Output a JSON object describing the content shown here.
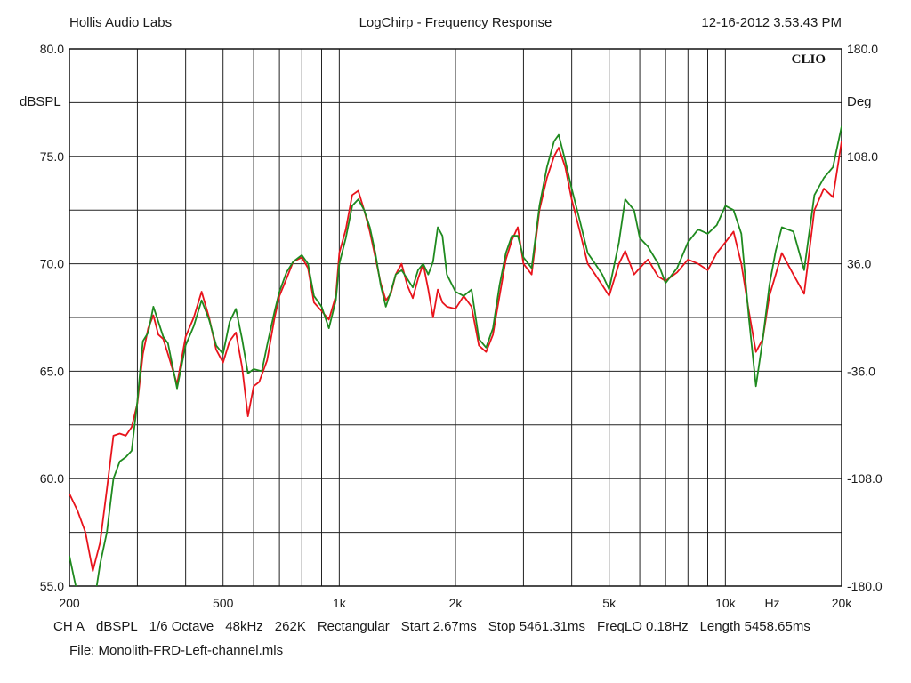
{
  "header": {
    "left": "Hollis Audio Labs",
    "center": "LogChirp - Frequency Response",
    "right": "12-16-2012 3.53.43 PM"
  },
  "brand": "CLIO",
  "footer": {
    "info": [
      "CH A",
      "dBSPL",
      "1/6 Octave",
      "48kHz",
      "262K",
      "Rectangular",
      "Start 2.67ms",
      "Stop 5461.31ms",
      "FreqLO 0.18Hz",
      "Length 5458.65ms"
    ],
    "file": "File: Monolith-FRD-Left-channel.mls"
  },
  "chart_data": {
    "type": "line",
    "xscale": "log",
    "xlim": [
      200,
      20000
    ],
    "ylim": [
      55,
      80
    ],
    "y2lim": [
      -180,
      180
    ],
    "ylabel": "dBSPL",
    "y2label": "Deg",
    "xunit": "Hz",
    "grid": true,
    "x_ticks": [
      {
        "v": 200,
        "label": "200"
      },
      {
        "v": 500,
        "label": "500"
      },
      {
        "v": 1000,
        "label": "1k"
      },
      {
        "v": 2000,
        "label": "2k"
      },
      {
        "v": 5000,
        "label": "5k"
      },
      {
        "v": 10000,
        "label": "10k"
      },
      {
        "v": 20000,
        "label": "20k"
      }
    ],
    "y_ticks": [
      {
        "v": 55,
        "label": "55.0"
      },
      {
        "v": 60,
        "label": "60.0"
      },
      {
        "v": 65,
        "label": "65.0"
      },
      {
        "v": 70,
        "label": "70.0"
      },
      {
        "v": 75,
        "label": "75.0"
      },
      {
        "v": 80,
        "label": "80.0"
      }
    ],
    "y2_ticks": [
      {
        "v": -180,
        "label": "-180.0"
      },
      {
        "v": -108,
        "label": "-108.0"
      },
      {
        "v": -36,
        "label": "-36.0"
      },
      {
        "v": 36,
        "label": "36.0"
      },
      {
        "v": 108,
        "label": "108.0"
      },
      {
        "v": 180,
        "label": "180.0"
      }
    ],
    "series": [
      {
        "color": "#e8141c",
        "points": [
          [
            200,
            59.3
          ],
          [
            210,
            58.5
          ],
          [
            220,
            57.5
          ],
          [
            230,
            55.7
          ],
          [
            240,
            57.0
          ],
          [
            250,
            59.5
          ],
          [
            260,
            62.0
          ],
          [
            270,
            62.1
          ],
          [
            280,
            62.0
          ],
          [
            290,
            62.4
          ],
          [
            300,
            63.5
          ],
          [
            310,
            65.8
          ],
          [
            320,
            67.0
          ],
          [
            330,
            67.6
          ],
          [
            340,
            66.7
          ],
          [
            350,
            66.5
          ],
          [
            360,
            65.8
          ],
          [
            380,
            64.4
          ],
          [
            400,
            66.6
          ],
          [
            420,
            67.5
          ],
          [
            440,
            68.7
          ],
          [
            460,
            67.5
          ],
          [
            480,
            66.0
          ],
          [
            500,
            65.4
          ],
          [
            520,
            66.4
          ],
          [
            540,
            66.8
          ],
          [
            560,
            65.2
          ],
          [
            580,
            62.9
          ],
          [
            600,
            64.3
          ],
          [
            620,
            64.5
          ],
          [
            650,
            65.5
          ],
          [
            680,
            67.5
          ],
          [
            700,
            68.5
          ],
          [
            730,
            69.3
          ],
          [
            760,
            70.1
          ],
          [
            800,
            70.3
          ],
          [
            830,
            69.8
          ],
          [
            860,
            68.2
          ],
          [
            900,
            67.8
          ],
          [
            940,
            67.4
          ],
          [
            980,
            68.5
          ],
          [
            1000,
            70.5
          ],
          [
            1040,
            71.6
          ],
          [
            1080,
            73.2
          ],
          [
            1120,
            73.4
          ],
          [
            1160,
            72.5
          ],
          [
            1200,
            71.5
          ],
          [
            1240,
            70.3
          ],
          [
            1280,
            69.1
          ],
          [
            1320,
            68.3
          ],
          [
            1360,
            68.6
          ],
          [
            1400,
            69.5
          ],
          [
            1450,
            70.0
          ],
          [
            1500,
            69.0
          ],
          [
            1550,
            68.4
          ],
          [
            1600,
            69.3
          ],
          [
            1650,
            70.0
          ],
          [
            1700,
            68.8
          ],
          [
            1750,
            67.5
          ],
          [
            1800,
            68.8
          ],
          [
            1850,
            68.2
          ],
          [
            1900,
            68.0
          ],
          [
            2000,
            67.9
          ],
          [
            2100,
            68.5
          ],
          [
            2200,
            68.0
          ],
          [
            2300,
            66.2
          ],
          [
            2400,
            65.9
          ],
          [
            2500,
            66.7
          ],
          [
            2600,
            68.5
          ],
          [
            2700,
            70.2
          ],
          [
            2800,
            71.1
          ],
          [
            2900,
            71.7
          ],
          [
            3000,
            70.0
          ],
          [
            3150,
            69.5
          ],
          [
            3300,
            72.5
          ],
          [
            3450,
            74.0
          ],
          [
            3600,
            75.0
          ],
          [
            3700,
            75.4
          ],
          [
            3850,
            74.5
          ],
          [
            4000,
            73.0
          ],
          [
            4200,
            71.5
          ],
          [
            4400,
            70.0
          ],
          [
            4600,
            69.5
          ],
          [
            4800,
            69.0
          ],
          [
            5000,
            68.5
          ],
          [
            5300,
            70.0
          ],
          [
            5500,
            70.6
          ],
          [
            5800,
            69.5
          ],
          [
            6000,
            69.8
          ],
          [
            6300,
            70.2
          ],
          [
            6700,
            69.4
          ],
          [
            7000,
            69.2
          ],
          [
            7500,
            69.6
          ],
          [
            8000,
            70.2
          ],
          [
            8500,
            70.0
          ],
          [
            9000,
            69.7
          ],
          [
            9500,
            70.5
          ],
          [
            10000,
            71.0
          ],
          [
            10500,
            71.5
          ],
          [
            11000,
            70.0
          ],
          [
            11500,
            67.8
          ],
          [
            12000,
            65.9
          ],
          [
            12500,
            66.5
          ],
          [
            13000,
            68.5
          ],
          [
            13500,
            69.5
          ],
          [
            14000,
            70.5
          ],
          [
            15000,
            69.5
          ],
          [
            16000,
            68.6
          ],
          [
            17000,
            72.5
          ],
          [
            18000,
            73.5
          ],
          [
            19000,
            73.1
          ],
          [
            20000,
            75.7
          ]
        ]
      },
      {
        "color": "#1f8a1f",
        "points": [
          [
            200,
            56.4
          ],
          [
            210,
            54.6
          ],
          [
            230,
            53.8
          ],
          [
            240,
            56.0
          ],
          [
            250,
            57.5
          ],
          [
            260,
            60.0
          ],
          [
            270,
            60.8
          ],
          [
            280,
            61.0
          ],
          [
            290,
            61.3
          ],
          [
            300,
            63.6
          ],
          [
            310,
            66.4
          ],
          [
            320,
            66.8
          ],
          [
            330,
            68.0
          ],
          [
            340,
            67.3
          ],
          [
            350,
            66.6
          ],
          [
            360,
            66.3
          ],
          [
            380,
            64.2
          ],
          [
            400,
            66.2
          ],
          [
            420,
            67.1
          ],
          [
            440,
            68.3
          ],
          [
            460,
            67.4
          ],
          [
            480,
            66.2
          ],
          [
            500,
            65.8
          ],
          [
            520,
            67.3
          ],
          [
            540,
            67.9
          ],
          [
            560,
            66.5
          ],
          [
            580,
            64.9
          ],
          [
            600,
            65.1
          ],
          [
            630,
            65.0
          ],
          [
            650,
            66.2
          ],
          [
            680,
            67.8
          ],
          [
            700,
            68.7
          ],
          [
            730,
            69.6
          ],
          [
            760,
            70.1
          ],
          [
            800,
            70.4
          ],
          [
            830,
            70.0
          ],
          [
            860,
            68.5
          ],
          [
            900,
            68.0
          ],
          [
            940,
            67.0
          ],
          [
            980,
            68.3
          ],
          [
            1000,
            70.0
          ],
          [
            1040,
            71.2
          ],
          [
            1080,
            72.7
          ],
          [
            1120,
            73.0
          ],
          [
            1160,
            72.5
          ],
          [
            1200,
            71.7
          ],
          [
            1240,
            70.5
          ],
          [
            1280,
            69.0
          ],
          [
            1320,
            68.0
          ],
          [
            1360,
            68.7
          ],
          [
            1400,
            69.5
          ],
          [
            1450,
            69.7
          ],
          [
            1500,
            69.3
          ],
          [
            1550,
            68.9
          ],
          [
            1600,
            69.7
          ],
          [
            1650,
            70.0
          ],
          [
            1700,
            69.5
          ],
          [
            1750,
            70.1
          ],
          [
            1800,
            71.7
          ],
          [
            1850,
            71.3
          ],
          [
            1900,
            69.5
          ],
          [
            2000,
            68.7
          ],
          [
            2100,
            68.5
          ],
          [
            2200,
            68.8
          ],
          [
            2300,
            66.5
          ],
          [
            2400,
            66.1
          ],
          [
            2500,
            67.0
          ],
          [
            2600,
            69.0
          ],
          [
            2700,
            70.5
          ],
          [
            2800,
            71.3
          ],
          [
            2900,
            71.3
          ],
          [
            3000,
            70.3
          ],
          [
            3150,
            69.8
          ],
          [
            3300,
            72.7
          ],
          [
            3450,
            74.5
          ],
          [
            3600,
            75.7
          ],
          [
            3700,
            76.0
          ],
          [
            3850,
            74.8
          ],
          [
            4000,
            73.5
          ],
          [
            4200,
            72.0
          ],
          [
            4400,
            70.5
          ],
          [
            4600,
            70.0
          ],
          [
            4800,
            69.5
          ],
          [
            5000,
            68.8
          ],
          [
            5300,
            71.0
          ],
          [
            5500,
            73.0
          ],
          [
            5800,
            72.5
          ],
          [
            6000,
            71.2
          ],
          [
            6300,
            70.8
          ],
          [
            6700,
            70.0
          ],
          [
            7000,
            69.1
          ],
          [
            7500,
            69.8
          ],
          [
            8000,
            71.0
          ],
          [
            8500,
            71.6
          ],
          [
            9000,
            71.4
          ],
          [
            9500,
            71.8
          ],
          [
            10000,
            72.7
          ],
          [
            10500,
            72.5
          ],
          [
            11000,
            71.4
          ],
          [
            11500,
            67.5
          ],
          [
            12000,
            64.3
          ],
          [
            12500,
            66.5
          ],
          [
            13000,
            69.0
          ],
          [
            13500,
            70.6
          ],
          [
            14000,
            71.7
          ],
          [
            15000,
            71.5
          ],
          [
            16000,
            69.7
          ],
          [
            17000,
            73.2
          ],
          [
            18000,
            74.0
          ],
          [
            19000,
            74.5
          ],
          [
            20000,
            76.4
          ]
        ]
      }
    ]
  }
}
